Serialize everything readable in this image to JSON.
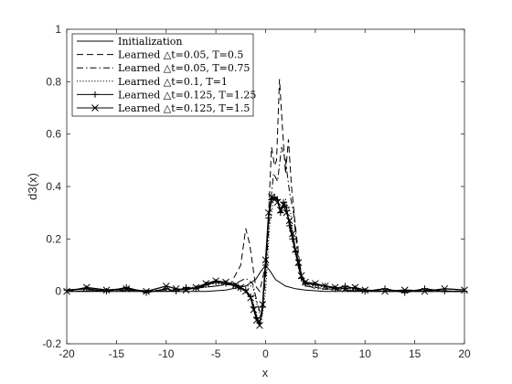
{
  "chart_data": {
    "type": "line",
    "title": "",
    "xlabel": "x",
    "ylabel": "d3(x)",
    "xlim": [
      -20,
      20
    ],
    "ylim": [
      -0.2,
      1
    ],
    "xticks": [
      "-20",
      "-15",
      "-10",
      "-5",
      "0",
      "5",
      "10",
      "15",
      "20"
    ],
    "yticks": [
      "-0.2",
      "0",
      "0.2",
      "0.4",
      "0.6",
      "0.8",
      "1"
    ],
    "grid": false,
    "legend_position": "top-left",
    "series": [
      {
        "name": "Initialization",
        "style": "solid",
        "marker": "none",
        "x": [
          -20,
          -6,
          -4,
          -2,
          -1,
          -0.5,
          0,
          0.5,
          1,
          2,
          3,
          4,
          6,
          20
        ],
        "y": [
          0,
          0,
          0.005,
          0.02,
          0.045,
          0.075,
          0.1,
          0.075,
          0.045,
          0.02,
          0.01,
          0.005,
          0,
          0
        ]
      },
      {
        "name": "Learned △t=0.05, T=0.5",
        "style": "dashed",
        "marker": "none",
        "x": [
          -20,
          -15,
          -10,
          -5,
          -3.5,
          -2.5,
          -2,
          -1.6,
          -1,
          -0.6,
          0,
          0.3,
          0.6,
          0.9,
          1.1,
          1.4,
          1.7,
          2,
          2.3,
          2.6,
          3,
          3.5,
          4,
          6,
          10,
          15,
          20
        ],
        "y": [
          0,
          0.005,
          0,
          0.02,
          0.03,
          0.1,
          0.24,
          0.18,
          0.02,
          0.0,
          0.1,
          0.3,
          0.55,
          0.48,
          0.5,
          0.81,
          0.62,
          0.45,
          0.58,
          0.4,
          0.25,
          0.08,
          0.02,
          0.01,
          0.0,
          0.005,
          0
        ]
      },
      {
        "name": "Learned △t=0.05, T=0.75",
        "style": "dashdot",
        "marker": "none",
        "x": [
          -20,
          -10,
          -5,
          -3,
          -2,
          -1.3,
          -0.8,
          -0.4,
          0,
          0.4,
          0.8,
          1.2,
          1.6,
          2,
          2.4,
          2.8,
          3.2,
          3.8,
          5,
          10,
          20
        ],
        "y": [
          0,
          0.005,
          0.02,
          0.03,
          0.05,
          0.03,
          -0.05,
          -0.1,
          0.05,
          0.3,
          0.45,
          0.42,
          0.55,
          0.5,
          0.38,
          0.3,
          0.15,
          0.03,
          0.01,
          0.0,
          0
        ]
      },
      {
        "name": "Learned △t=0.1, T=1",
        "style": "dotted",
        "marker": "none",
        "x": [
          -20,
          -10,
          -5,
          -2,
          -1.3,
          -0.8,
          -0.4,
          0,
          0.4,
          0.8,
          1.2,
          1.6,
          2,
          2.5,
          3,
          3.5,
          4,
          5,
          10,
          20
        ],
        "y": [
          0,
          0.0,
          0.03,
          0.02,
          0.02,
          -0.06,
          -0.11,
          0.0,
          0.25,
          0.35,
          0.35,
          0.3,
          0.35,
          0.3,
          0.15,
          0.05,
          0.02,
          0.02,
          0.0,
          0
        ]
      },
      {
        "name": "Learned △t=0.125, T=1.25",
        "style": "solid",
        "marker": "plus",
        "x": [
          -20,
          -18,
          -16,
          -14,
          -12,
          -10,
          -9,
          -8,
          -7,
          -6,
          -5,
          -4,
          -3,
          -2.5,
          -2,
          -1.5,
          -1.2,
          -0.9,
          -0.6,
          -0.3,
          0,
          0.3,
          0.6,
          0.9,
          1.2,
          1.5,
          1.8,
          2.1,
          2.4,
          2.7,
          3,
          3.3,
          3.6,
          4,
          5,
          6,
          7,
          8,
          9,
          10,
          12,
          14,
          16,
          18,
          20
        ],
        "y": [
          0.005,
          0.01,
          0.0,
          0.015,
          -0.005,
          0.01,
          0.0,
          0.015,
          0.01,
          0.025,
          0.035,
          0.03,
          0.02,
          0.01,
          0.005,
          -0.02,
          -0.06,
          -0.1,
          -0.12,
          -0.06,
          0.1,
          0.28,
          0.35,
          0.36,
          0.35,
          0.3,
          0.34,
          0.32,
          0.25,
          0.2,
          0.15,
          0.1,
          0.05,
          0.03,
          0.025,
          0.02,
          0.01,
          0.02,
          0.01,
          0.0,
          0.01,
          -0.005,
          0.01,
          0.0,
          0.0
        ]
      },
      {
        "name": "Learned △t=0.125, T=1.5",
        "style": "solid",
        "marker": "x",
        "x": [
          -20,
          -18,
          -16,
          -14,
          -12,
          -10,
          -9,
          -8,
          -7,
          -6,
          -5,
          -4,
          -3,
          -2.5,
          -2,
          -1.5,
          -1.2,
          -0.9,
          -0.6,
          -0.3,
          0,
          0.3,
          0.6,
          0.9,
          1.2,
          1.5,
          1.8,
          2.1,
          2.4,
          2.7,
          3,
          3.3,
          3.6,
          4,
          5,
          6,
          7,
          8,
          9,
          10,
          12,
          14,
          16,
          18,
          20
        ],
        "y": [
          0.0,
          0.015,
          0.005,
          0.01,
          0.0,
          0.02,
          0.01,
          0.005,
          0.015,
          0.03,
          0.04,
          0.035,
          0.025,
          0.015,
          0.0,
          -0.025,
          -0.07,
          -0.11,
          -0.13,
          -0.05,
          0.12,
          0.3,
          0.36,
          0.35,
          0.34,
          0.31,
          0.33,
          0.3,
          0.27,
          0.22,
          0.16,
          0.11,
          0.06,
          0.035,
          0.03,
          0.02,
          0.015,
          0.01,
          0.015,
          0.005,
          0.0,
          0.005,
          0.0,
          0.01,
          0.005
        ]
      }
    ]
  }
}
